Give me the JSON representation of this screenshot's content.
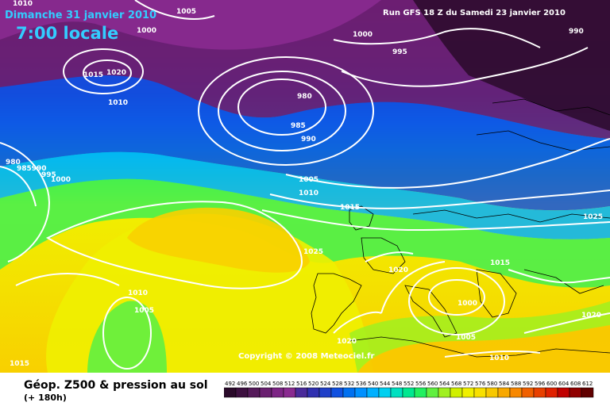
{
  "header": {
    "date": "Dimanche 31 janvier 2010",
    "time": "7:00 locale",
    "run": "Run GFS 18 Z du Samedi 23 janvier 2010"
  },
  "copyright": "Copyright © 2008 Meteociel.fr",
  "legend": {
    "title": "Géop. Z500 & pression au sol",
    "subtitle": "(+ 180h)",
    "values": [
      "492",
      "496",
      "500",
      "504",
      "508",
      "512",
      "516",
      "520",
      "524",
      "528",
      "532",
      "536",
      "540",
      "544",
      "548",
      "552",
      "556",
      "560",
      "564",
      "568",
      "572",
      "576",
      "580",
      "584",
      "588",
      "592",
      "596",
      "600",
      "604",
      "608",
      "612"
    ],
    "colors": [
      "#2a0a2a",
      "#3d1040",
      "#551a5a",
      "#6a1f70",
      "#7d2585",
      "#8a2a90",
      "#4a2a9a",
      "#3030b0",
      "#2040c8",
      "#1050e0",
      "#0070f0",
      "#0090ff",
      "#00b0ff",
      "#00d0f0",
      "#00e0c0",
      "#00e890",
      "#20f060",
      "#60f040",
      "#a0f020",
      "#d0f000",
      "#f0f000",
      "#f8e000",
      "#f8c800",
      "#f8a800",
      "#f88800",
      "#f06000",
      "#e84000",
      "#e02000",
      "#c00000",
      "#900000",
      "#600000"
    ]
  },
  "isobar_labels": [
    "1005",
    "1000",
    "1010",
    "1015",
    "1020",
    "1010",
    "1000",
    "995",
    "990",
    "980",
    "985",
    "990",
    "980",
    "985990",
    "995",
    "1000",
    "1005",
    "1010",
    "1015",
    "1025",
    "1025",
    "1020",
    "1010",
    "1005",
    "1015",
    "1000",
    "1005",
    "1015",
    "1020",
    "1020",
    "1010"
  ]
}
